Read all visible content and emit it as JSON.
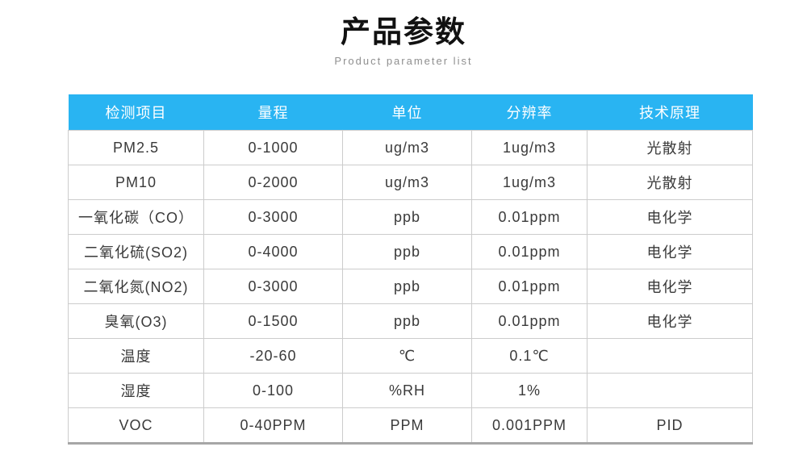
{
  "page": {
    "title": "产品参数",
    "subtitle": "Product parameter list"
  },
  "colors": {
    "header_bg": "#29b4f2",
    "header_text": "#ffffff",
    "cell_border": "#cccccc",
    "table_bottom_border": "#a6a6a6",
    "body_text": "#3a3a3a",
    "title_text": "#111111",
    "subtitle_text": "#8f8f8f"
  },
  "table": {
    "columns": [
      "检测项目",
      "量程",
      "单位",
      "分辨率",
      "技术原理"
    ],
    "rows": [
      [
        "PM2.5",
        "0-1000",
        "ug/m3",
        "1ug/m3",
        "光散射"
      ],
      [
        "PM10",
        "0-2000",
        "ug/m3",
        "1ug/m3",
        "光散射"
      ],
      [
        "一氧化碳（CO）",
        "0-3000",
        "ppb",
        "0.01ppm",
        "电化学"
      ],
      [
        "二氧化硫(SO2)",
        "0-4000",
        "ppb",
        "0.01ppm",
        "电化学"
      ],
      [
        "二氧化氮(NO2)",
        "0-3000",
        "ppb",
        "0.01ppm",
        "电化学"
      ],
      [
        "臭氧(O3)",
        "0-1500",
        "ppb",
        "0.01ppm",
        "电化学"
      ],
      [
        "温度",
        "-20-60",
        "℃",
        "0.1℃",
        ""
      ],
      [
        "湿度",
        "0-100",
        "%RH",
        "1%",
        ""
      ],
      [
        "VOC",
        "0-40PPM",
        "PPM",
        "0.001PPM",
        "PID"
      ]
    ]
  }
}
